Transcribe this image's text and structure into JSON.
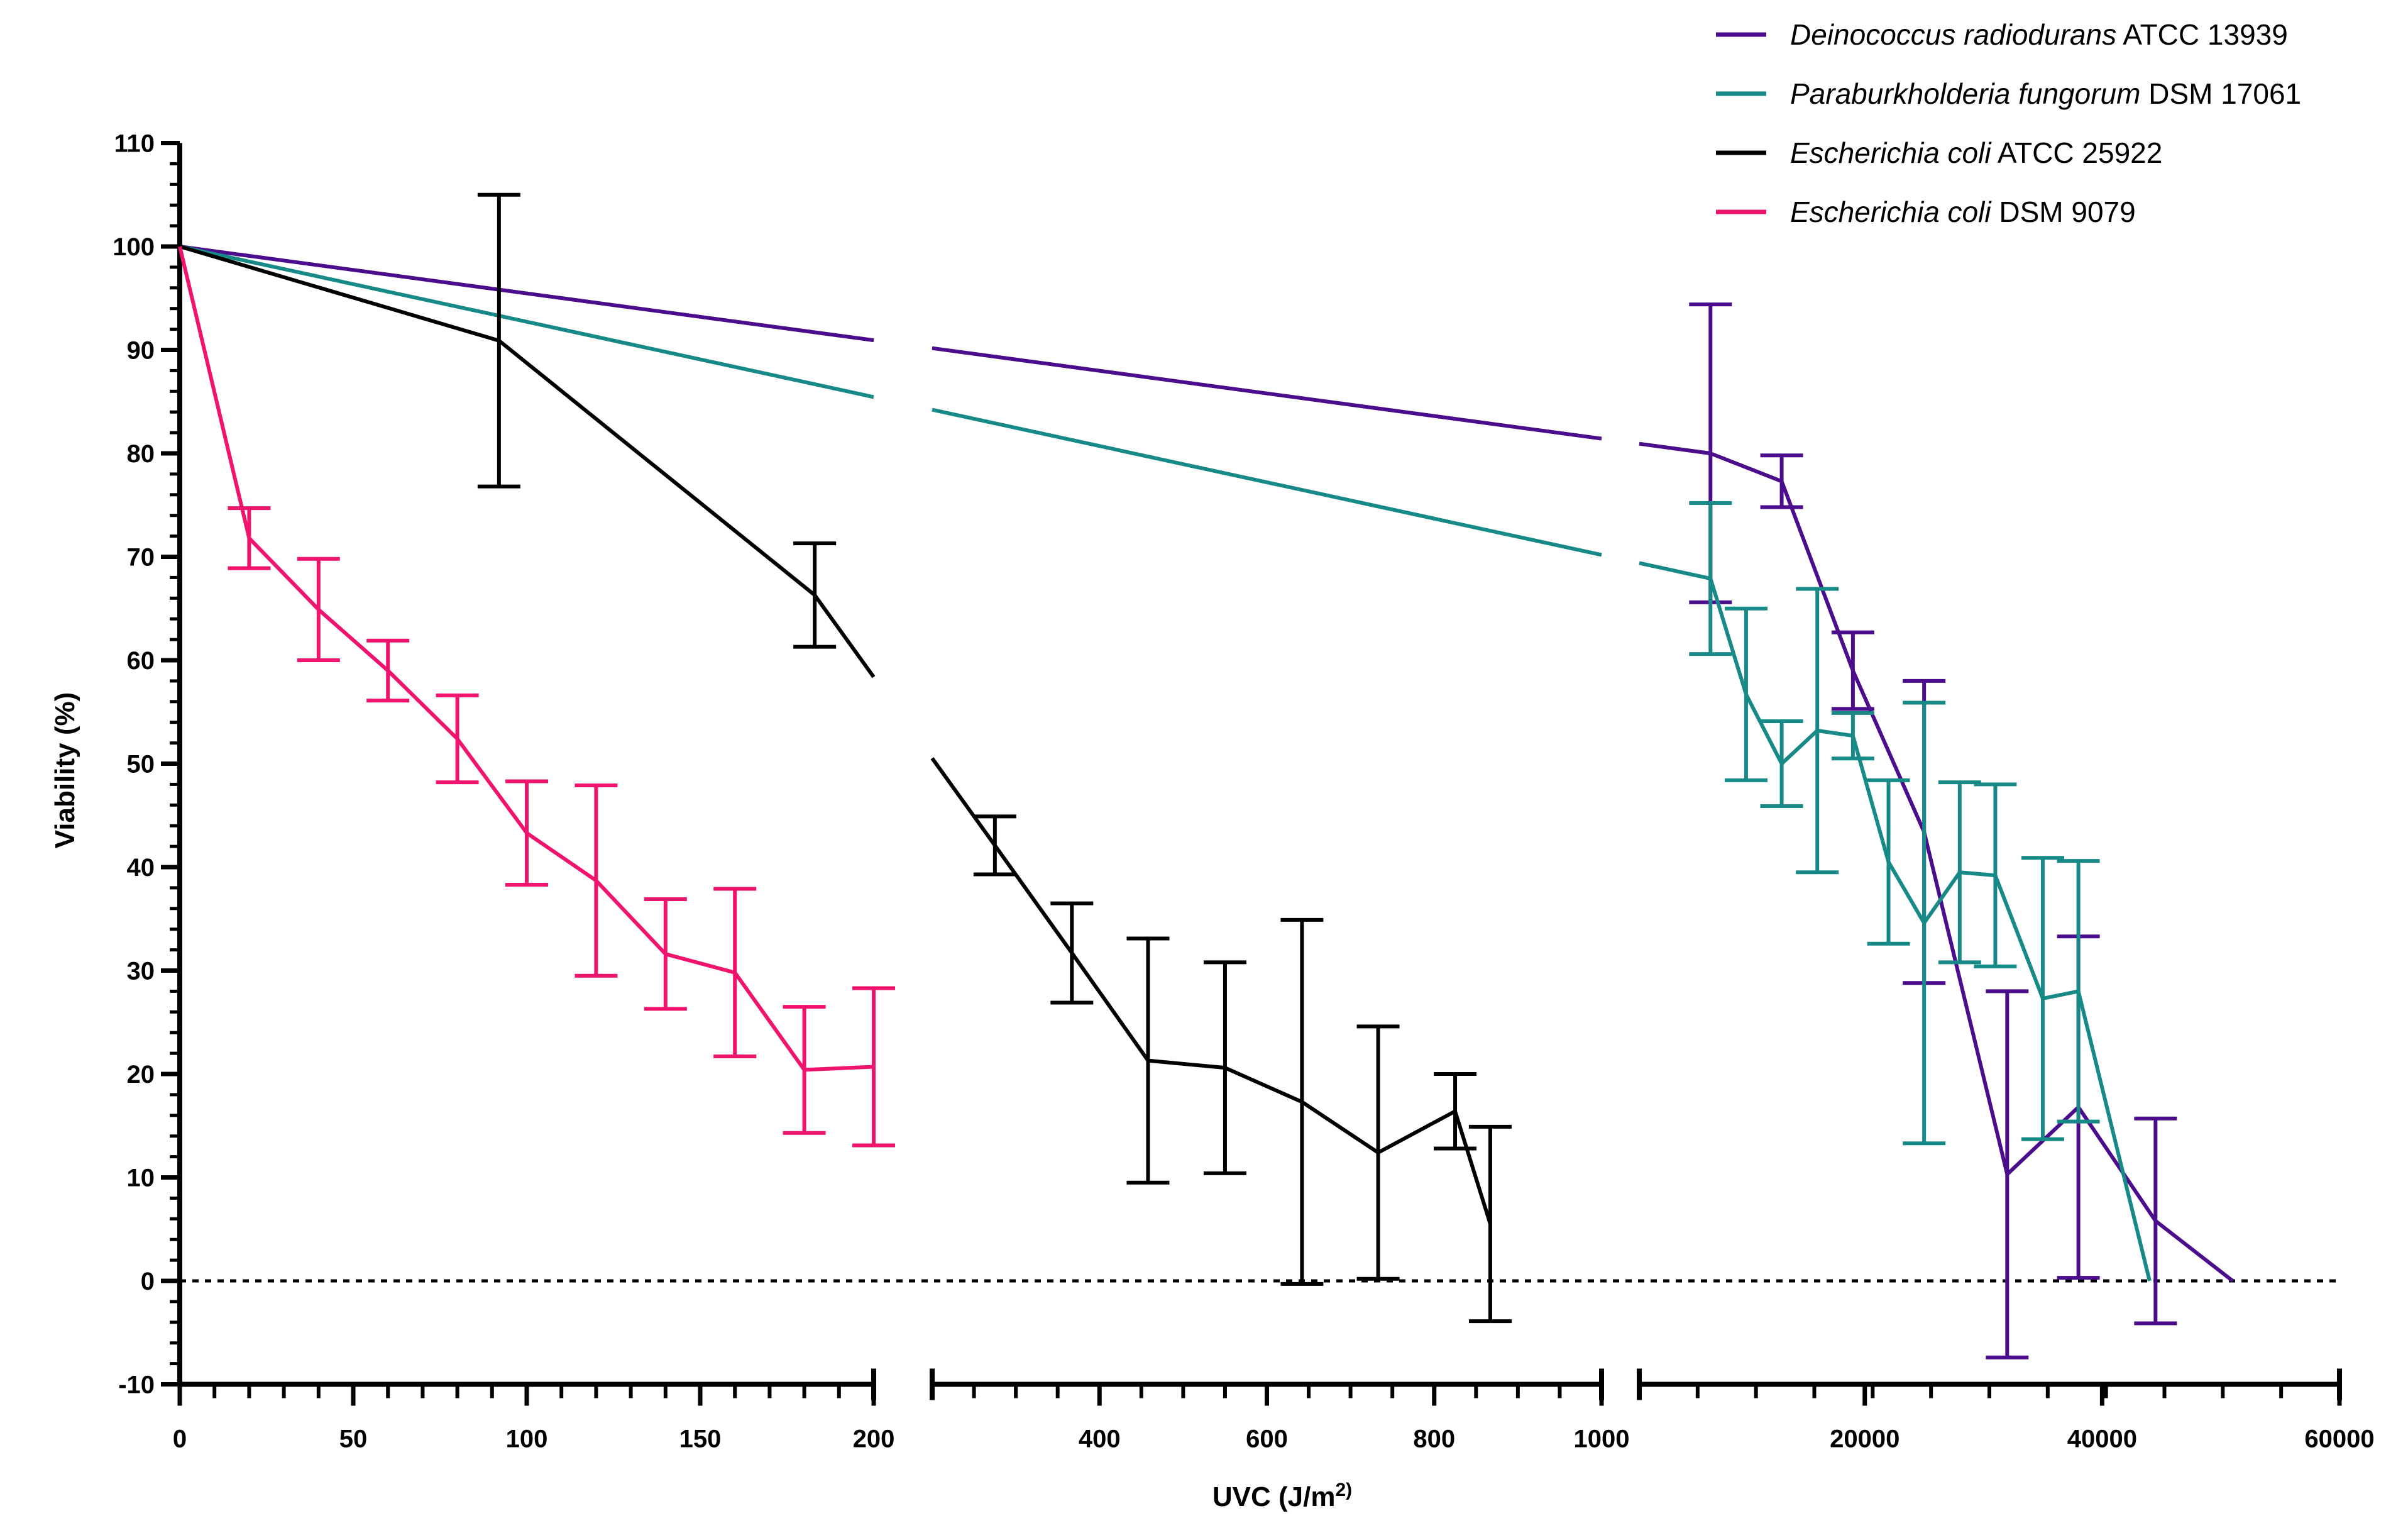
{
  "chart_data": {
    "type": "line",
    "title": "",
    "xlabel_main": "UVC (J/m",
    "xlabel_sup": "2)",
    "xlabel_close": ")",
    "ylabel": "Viability (%)",
    "ylim": [
      -10,
      110
    ],
    "y_ticks": [
      "-10",
      "0",
      "10",
      "20",
      "30",
      "40",
      "50",
      "60",
      "70",
      "80",
      "90",
      "100",
      "110"
    ],
    "x_segments": [
      {
        "range": [
          0,
          200
        ],
        "ticks": [
          "0",
          "50",
          "100",
          "150",
          "200"
        ]
      },
      {
        "range": [
          200,
          1000
        ],
        "ticks": [
          "400",
          "600",
          "800",
          "1000"
        ]
      },
      {
        "range": [
          1000,
          60000
        ],
        "ticks": [
          "20000",
          "40000",
          "60000"
        ]
      }
    ],
    "reference_line": {
      "y": 0,
      "style": "dotted"
    },
    "legend_position": "top-right",
    "series": [
      {
        "name_italic": "Deinococcus radiodurans",
        "name_rest": " ATCC 13939",
        "color": "#4B0D8C",
        "x": [
          0,
          7000,
          13000,
          19000,
          25000,
          32000,
          38000,
          44500,
          51000
        ],
        "y": [
          100,
          80,
          77.3,
          59,
          43.4,
          10.3,
          16.8,
          5.8,
          0
        ],
        "err": [
          0,
          14.4,
          2.5,
          3.7,
          14.6,
          17.7,
          16.5,
          9.9,
          0
        ]
      },
      {
        "name_italic": "Paraburkholderia fungorum",
        "name_rest": " DSM 17061",
        "color": "#178A87",
        "x": [
          0,
          7000,
          10000,
          13000,
          16000,
          19000,
          22000,
          25000,
          28000,
          31000,
          35000,
          38000,
          44000
        ],
        "y": [
          100,
          67.9,
          56.7,
          50,
          53.2,
          52.7,
          40.5,
          34.6,
          39.5,
          39.2,
          27.3,
          28,
          0
        ],
        "err": [
          0,
          7.3,
          8.3,
          4.1,
          13.7,
          2.2,
          7.9,
          21.3,
          8.7,
          8.8,
          13.6,
          12.6,
          0
        ]
      },
      {
        "name_italic": "Escherichia coli",
        "name_rest": " ATCC 25922",
        "color": "#000000",
        "x": [
          0,
          92,
          183,
          275,
          367,
          458,
          550,
          642,
          733,
          825,
          867
        ],
        "y": [
          100,
          90.9,
          66.3,
          42.1,
          31.7,
          21.3,
          20.6,
          17.3,
          12.4,
          16.4,
          5.5
        ],
        "err": [
          0,
          14.1,
          5.0,
          2.8,
          4.8,
          11.8,
          10.2,
          17.6,
          12.2,
          3.6,
          9.4
        ]
      },
      {
        "name_italic": "Escherichia coli",
        "name_rest": " DSM 9079",
        "color": "#F0146E",
        "x": [
          0,
          20,
          40,
          60,
          80,
          100,
          120,
          140,
          160,
          180,
          200
        ],
        "y": [
          100,
          71.8,
          64.9,
          59,
          52.4,
          43.3,
          38.7,
          31.6,
          29.8,
          20.4,
          20.7
        ],
        "err": [
          0,
          2.9,
          4.9,
          2.9,
          4.2,
          5.0,
          9.2,
          5.3,
          8.1,
          6.1,
          7.6
        ]
      }
    ]
  }
}
